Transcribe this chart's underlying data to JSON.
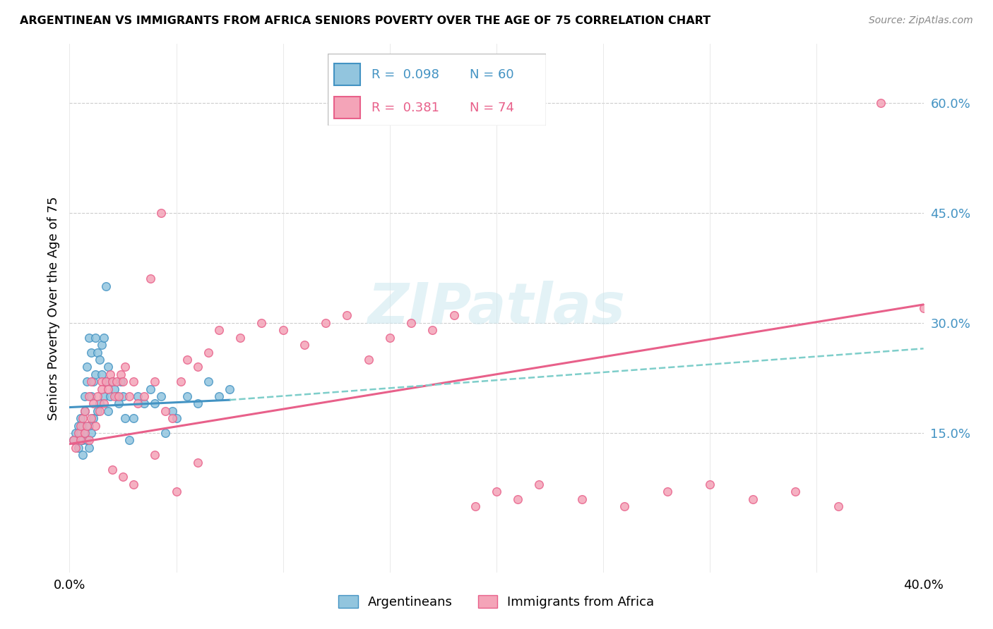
{
  "title": "ARGENTINEAN VS IMMIGRANTS FROM AFRICA SENIORS POVERTY OVER THE AGE OF 75 CORRELATION CHART",
  "source": "Source: ZipAtlas.com",
  "ylabel": "Seniors Poverty Over the Age of 75",
  "ytick_labels": [
    "60.0%",
    "45.0%",
    "30.0%",
    "15.0%"
  ],
  "ytick_values": [
    0.6,
    0.45,
    0.3,
    0.15
  ],
  "xlim": [
    0.0,
    0.4
  ],
  "ylim": [
    -0.04,
    0.68
  ],
  "blue_color": "#92c5de",
  "pink_color": "#f4a4b8",
  "blue_line_color": "#4393c3",
  "pink_line_color": "#e8608a",
  "dash_line_color": "#7ececa",
  "watermark_color": "#cce8f0",
  "argentineans_x": [
    0.002,
    0.003,
    0.004,
    0.004,
    0.005,
    0.005,
    0.006,
    0.006,
    0.006,
    0.007,
    0.007,
    0.007,
    0.008,
    0.008,
    0.008,
    0.009,
    0.009,
    0.009,
    0.01,
    0.01,
    0.01,
    0.011,
    0.011,
    0.012,
    0.012,
    0.013,
    0.013,
    0.014,
    0.014,
    0.015,
    0.015,
    0.016,
    0.016,
    0.017,
    0.017,
    0.018,
    0.018,
    0.019,
    0.02,
    0.021,
    0.022,
    0.023,
    0.024,
    0.025,
    0.026,
    0.028,
    0.03,
    0.032,
    0.035,
    0.038,
    0.04,
    0.043,
    0.045,
    0.048,
    0.05,
    0.055,
    0.06,
    0.065,
    0.07,
    0.075
  ],
  "argentineans_y": [
    0.14,
    0.15,
    0.16,
    0.13,
    0.15,
    0.17,
    0.14,
    0.16,
    0.12,
    0.15,
    0.18,
    0.2,
    0.14,
    0.22,
    0.24,
    0.13,
    0.16,
    0.28,
    0.15,
    0.2,
    0.26,
    0.17,
    0.22,
    0.23,
    0.28,
    0.18,
    0.26,
    0.19,
    0.25,
    0.23,
    0.27,
    0.2,
    0.28,
    0.22,
    0.35,
    0.18,
    0.24,
    0.2,
    0.22,
    0.21,
    0.2,
    0.19,
    0.22,
    0.2,
    0.17,
    0.14,
    0.17,
    0.2,
    0.19,
    0.21,
    0.19,
    0.2,
    0.15,
    0.18,
    0.17,
    0.2,
    0.19,
    0.22,
    0.2,
    0.21
  ],
  "africa_x": [
    0.002,
    0.003,
    0.004,
    0.005,
    0.005,
    0.006,
    0.007,
    0.007,
    0.008,
    0.009,
    0.009,
    0.01,
    0.01,
    0.011,
    0.012,
    0.013,
    0.014,
    0.015,
    0.015,
    0.016,
    0.017,
    0.018,
    0.019,
    0.02,
    0.021,
    0.022,
    0.023,
    0.024,
    0.025,
    0.026,
    0.028,
    0.03,
    0.032,
    0.035,
    0.038,
    0.04,
    0.043,
    0.045,
    0.048,
    0.052,
    0.055,
    0.06,
    0.065,
    0.07,
    0.08,
    0.09,
    0.1,
    0.11,
    0.12,
    0.13,
    0.14,
    0.15,
    0.16,
    0.17,
    0.18,
    0.19,
    0.2,
    0.21,
    0.22,
    0.24,
    0.26,
    0.28,
    0.3,
    0.32,
    0.34,
    0.36,
    0.38,
    0.4,
    0.02,
    0.025,
    0.03,
    0.04,
    0.05,
    0.06
  ],
  "africa_y": [
    0.14,
    0.13,
    0.15,
    0.16,
    0.14,
    0.17,
    0.15,
    0.18,
    0.16,
    0.14,
    0.2,
    0.17,
    0.22,
    0.19,
    0.16,
    0.2,
    0.18,
    0.22,
    0.21,
    0.19,
    0.22,
    0.21,
    0.23,
    0.22,
    0.2,
    0.22,
    0.2,
    0.23,
    0.22,
    0.24,
    0.2,
    0.22,
    0.19,
    0.2,
    0.36,
    0.22,
    0.45,
    0.18,
    0.17,
    0.22,
    0.25,
    0.24,
    0.26,
    0.29,
    0.28,
    0.3,
    0.29,
    0.27,
    0.3,
    0.31,
    0.25,
    0.28,
    0.3,
    0.29,
    0.31,
    0.05,
    0.07,
    0.06,
    0.08,
    0.06,
    0.05,
    0.07,
    0.08,
    0.06,
    0.07,
    0.05,
    0.6,
    0.32,
    0.1,
    0.09,
    0.08,
    0.12,
    0.07,
    0.11
  ],
  "blue_trend_x": [
    0.0,
    0.4
  ],
  "blue_trend_y": [
    0.185,
    0.215
  ],
  "pink_trend_x": [
    0.0,
    0.4
  ],
  "pink_trend_y": [
    0.135,
    0.325
  ],
  "dash_trend_x": [
    0.075,
    0.4
  ],
  "dash_trend_y": [
    0.195,
    0.265
  ]
}
